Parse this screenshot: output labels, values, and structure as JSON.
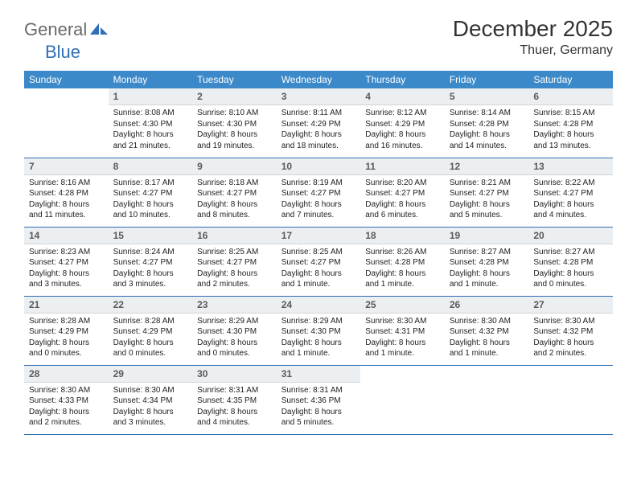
{
  "logo": {
    "text1": "General",
    "text2": "Blue"
  },
  "title": "December 2025",
  "location": "Thuer, Germany",
  "colors": {
    "header_bg": "#3b89c9",
    "logo_gray": "#6a6a6a",
    "logo_blue": "#2f6fb5",
    "daynum_bg": "#eceff1",
    "row_border": "#2f6fb5"
  },
  "weekdays": [
    "Sunday",
    "Monday",
    "Tuesday",
    "Wednesday",
    "Thursday",
    "Friday",
    "Saturday"
  ],
  "weeks": [
    [
      {
        "n": "",
        "sr": "",
        "ss": "",
        "dl": "",
        "empty": true
      },
      {
        "n": "1",
        "sr": "Sunrise: 8:08 AM",
        "ss": "Sunset: 4:30 PM",
        "dl": "Daylight: 8 hours and 21 minutes."
      },
      {
        "n": "2",
        "sr": "Sunrise: 8:10 AM",
        "ss": "Sunset: 4:30 PM",
        "dl": "Daylight: 8 hours and 19 minutes."
      },
      {
        "n": "3",
        "sr": "Sunrise: 8:11 AM",
        "ss": "Sunset: 4:29 PM",
        "dl": "Daylight: 8 hours and 18 minutes."
      },
      {
        "n": "4",
        "sr": "Sunrise: 8:12 AM",
        "ss": "Sunset: 4:29 PM",
        "dl": "Daylight: 8 hours and 16 minutes."
      },
      {
        "n": "5",
        "sr": "Sunrise: 8:14 AM",
        "ss": "Sunset: 4:28 PM",
        "dl": "Daylight: 8 hours and 14 minutes."
      },
      {
        "n": "6",
        "sr": "Sunrise: 8:15 AM",
        "ss": "Sunset: 4:28 PM",
        "dl": "Daylight: 8 hours and 13 minutes."
      }
    ],
    [
      {
        "n": "7",
        "sr": "Sunrise: 8:16 AM",
        "ss": "Sunset: 4:28 PM",
        "dl": "Daylight: 8 hours and 11 minutes."
      },
      {
        "n": "8",
        "sr": "Sunrise: 8:17 AM",
        "ss": "Sunset: 4:27 PM",
        "dl": "Daylight: 8 hours and 10 minutes."
      },
      {
        "n": "9",
        "sr": "Sunrise: 8:18 AM",
        "ss": "Sunset: 4:27 PM",
        "dl": "Daylight: 8 hours and 8 minutes."
      },
      {
        "n": "10",
        "sr": "Sunrise: 8:19 AM",
        "ss": "Sunset: 4:27 PM",
        "dl": "Daylight: 8 hours and 7 minutes."
      },
      {
        "n": "11",
        "sr": "Sunrise: 8:20 AM",
        "ss": "Sunset: 4:27 PM",
        "dl": "Daylight: 8 hours and 6 minutes."
      },
      {
        "n": "12",
        "sr": "Sunrise: 8:21 AM",
        "ss": "Sunset: 4:27 PM",
        "dl": "Daylight: 8 hours and 5 minutes."
      },
      {
        "n": "13",
        "sr": "Sunrise: 8:22 AM",
        "ss": "Sunset: 4:27 PM",
        "dl": "Daylight: 8 hours and 4 minutes."
      }
    ],
    [
      {
        "n": "14",
        "sr": "Sunrise: 8:23 AM",
        "ss": "Sunset: 4:27 PM",
        "dl": "Daylight: 8 hours and 3 minutes."
      },
      {
        "n": "15",
        "sr": "Sunrise: 8:24 AM",
        "ss": "Sunset: 4:27 PM",
        "dl": "Daylight: 8 hours and 3 minutes."
      },
      {
        "n": "16",
        "sr": "Sunrise: 8:25 AM",
        "ss": "Sunset: 4:27 PM",
        "dl": "Daylight: 8 hours and 2 minutes."
      },
      {
        "n": "17",
        "sr": "Sunrise: 8:25 AM",
        "ss": "Sunset: 4:27 PM",
        "dl": "Daylight: 8 hours and 1 minute."
      },
      {
        "n": "18",
        "sr": "Sunrise: 8:26 AM",
        "ss": "Sunset: 4:28 PM",
        "dl": "Daylight: 8 hours and 1 minute."
      },
      {
        "n": "19",
        "sr": "Sunrise: 8:27 AM",
        "ss": "Sunset: 4:28 PM",
        "dl": "Daylight: 8 hours and 1 minute."
      },
      {
        "n": "20",
        "sr": "Sunrise: 8:27 AM",
        "ss": "Sunset: 4:28 PM",
        "dl": "Daylight: 8 hours and 0 minutes."
      }
    ],
    [
      {
        "n": "21",
        "sr": "Sunrise: 8:28 AM",
        "ss": "Sunset: 4:29 PM",
        "dl": "Daylight: 8 hours and 0 minutes."
      },
      {
        "n": "22",
        "sr": "Sunrise: 8:28 AM",
        "ss": "Sunset: 4:29 PM",
        "dl": "Daylight: 8 hours and 0 minutes."
      },
      {
        "n": "23",
        "sr": "Sunrise: 8:29 AM",
        "ss": "Sunset: 4:30 PM",
        "dl": "Daylight: 8 hours and 0 minutes."
      },
      {
        "n": "24",
        "sr": "Sunrise: 8:29 AM",
        "ss": "Sunset: 4:30 PM",
        "dl": "Daylight: 8 hours and 1 minute."
      },
      {
        "n": "25",
        "sr": "Sunrise: 8:30 AM",
        "ss": "Sunset: 4:31 PM",
        "dl": "Daylight: 8 hours and 1 minute."
      },
      {
        "n": "26",
        "sr": "Sunrise: 8:30 AM",
        "ss": "Sunset: 4:32 PM",
        "dl": "Daylight: 8 hours and 1 minute."
      },
      {
        "n": "27",
        "sr": "Sunrise: 8:30 AM",
        "ss": "Sunset: 4:32 PM",
        "dl": "Daylight: 8 hours and 2 minutes."
      }
    ],
    [
      {
        "n": "28",
        "sr": "Sunrise: 8:30 AM",
        "ss": "Sunset: 4:33 PM",
        "dl": "Daylight: 8 hours and 2 minutes."
      },
      {
        "n": "29",
        "sr": "Sunrise: 8:30 AM",
        "ss": "Sunset: 4:34 PM",
        "dl": "Daylight: 8 hours and 3 minutes."
      },
      {
        "n": "30",
        "sr": "Sunrise: 8:31 AM",
        "ss": "Sunset: 4:35 PM",
        "dl": "Daylight: 8 hours and 4 minutes."
      },
      {
        "n": "31",
        "sr": "Sunrise: 8:31 AM",
        "ss": "Sunset: 4:36 PM",
        "dl": "Daylight: 8 hours and 5 minutes."
      },
      {
        "n": "",
        "sr": "",
        "ss": "",
        "dl": "",
        "empty": true
      },
      {
        "n": "",
        "sr": "",
        "ss": "",
        "dl": "",
        "empty": true
      },
      {
        "n": "",
        "sr": "",
        "ss": "",
        "dl": "",
        "empty": true
      }
    ]
  ]
}
